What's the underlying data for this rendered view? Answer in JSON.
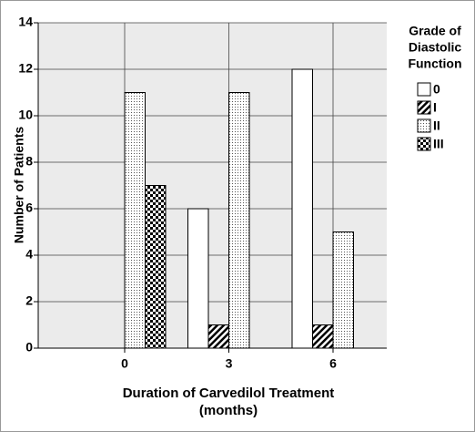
{
  "chart_data": {
    "type": "bar",
    "y_label": "Number of Patients",
    "x_label": [
      "Duration of Carvedilol Treatment",
      "(months)"
    ],
    "legend_title": [
      "Grade of",
      "Diastolic",
      "Function"
    ],
    "categories": [
      "0",
      "3",
      "6"
    ],
    "series": [
      {
        "name": "0",
        "color": "#ffffff",
        "pattern": "solid",
        "values": [
          0,
          6,
          12
        ]
      },
      {
        "name": "I",
        "color": "#000000",
        "pattern": "hatch",
        "values": [
          0,
          1,
          1
        ]
      },
      {
        "name": "II",
        "color": "#000000",
        "pattern": "dots",
        "values": [
          11,
          11,
          5
        ]
      },
      {
        "name": "III",
        "color": "#000000",
        "pattern": "checker",
        "values": [
          7,
          0,
          0
        ]
      }
    ],
    "ylim": [
      0,
      14
    ],
    "yticks": [
      0,
      2,
      4,
      6,
      8,
      10,
      12,
      14
    ],
    "grid": true,
    "legend": "right"
  }
}
